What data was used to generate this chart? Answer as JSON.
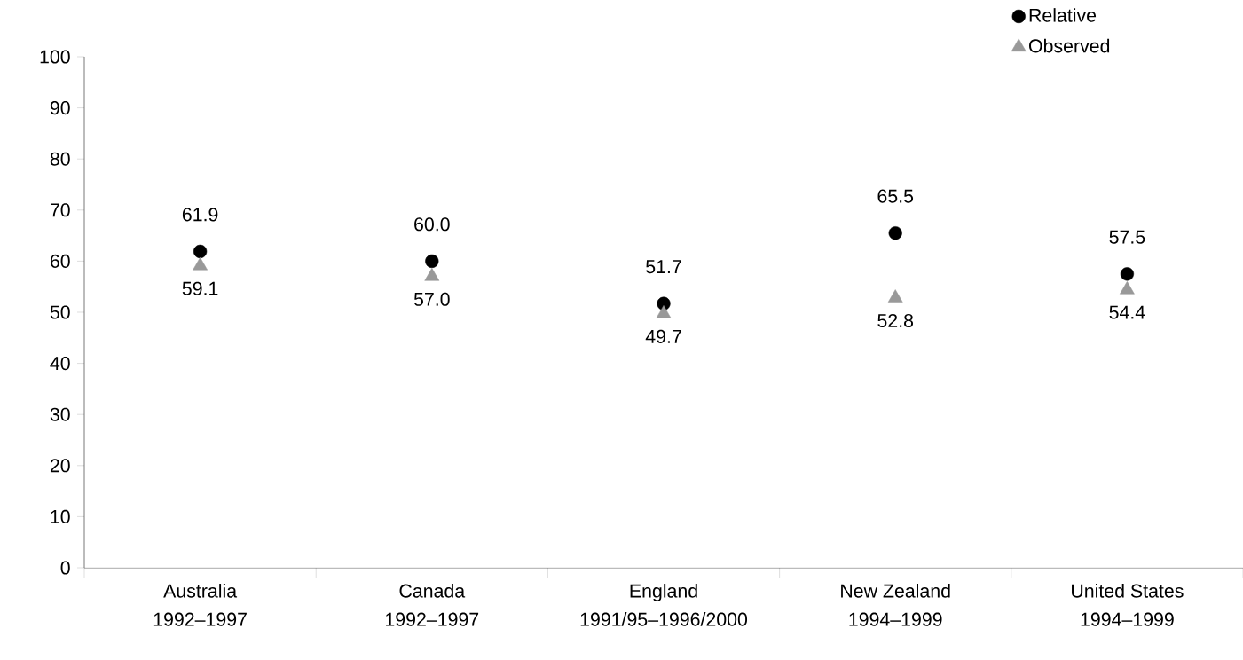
{
  "chart_data": {
    "type": "scatter",
    "categories": [
      "Australia 1992–1997",
      "Canada 1992–1997",
      "England 1991/95–1996/2000",
      "New Zealand 1994–1999",
      "United States 1994–1999"
    ],
    "series": [
      {
        "name": "Relative",
        "color": "#000000",
        "marker": "circle",
        "values": [
          61.9,
          60.0,
          51.7,
          65.5,
          57.5
        ],
        "value_labels": [
          "61.9",
          "60.0",
          "51.7",
          "65.5",
          "57.5"
        ]
      },
      {
        "name": "Observed",
        "color": "#999999",
        "marker": "triangle",
        "values": [
          59.1,
          57.0,
          49.7,
          52.8,
          54.4
        ],
        "value_labels": [
          "59.1",
          "57.0",
          "49.7",
          "52.8",
          "54.4"
        ]
      }
    ],
    "ylim": [
      0,
      100
    ],
    "yticks": [
      0,
      10,
      20,
      30,
      40,
      50,
      60,
      70,
      80,
      90,
      100
    ],
    "legend": "top right",
    "grid": false
  }
}
